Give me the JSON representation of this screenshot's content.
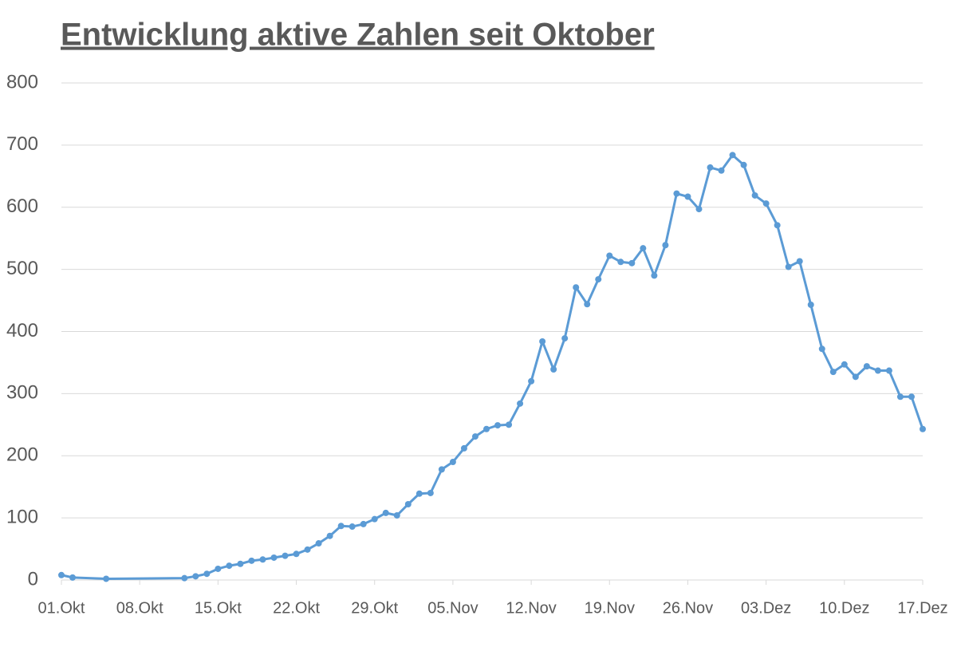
{
  "chart_data": {
    "type": "line",
    "title": "Entwicklung aktive Zahlen seit Oktober",
    "x": [
      0,
      1,
      4,
      11,
      12,
      13,
      14,
      15,
      16,
      17,
      18,
      19,
      20,
      21,
      22,
      23,
      24,
      25,
      26,
      27,
      28,
      29,
      30,
      31,
      32,
      33,
      34,
      35,
      36,
      37,
      38,
      39,
      40,
      41,
      42,
      43,
      44,
      45,
      46,
      47,
      48,
      49,
      50,
      51,
      52,
      53,
      54,
      55,
      56,
      57,
      58,
      59,
      60,
      61,
      62,
      63,
      64,
      65,
      66,
      67,
      68,
      69,
      70,
      71,
      72,
      73,
      74,
      75,
      76,
      77
    ],
    "series": [
      {
        "name": "aktive Zahlen",
        "color": "#5b9bd5",
        "values": [
          8,
          4,
          2,
          3,
          6,
          10,
          18,
          23,
          26,
          31,
          33,
          36,
          39,
          42,
          49,
          59,
          71,
          87,
          86,
          90,
          98,
          108,
          104,
          122,
          139,
          140,
          178,
          190,
          212,
          231,
          243,
          249,
          250,
          284,
          320,
          384,
          339,
          389,
          471,
          444,
          484,
          522,
          512,
          510,
          534,
          490,
          539,
          622,
          617,
          597,
          664,
          659,
          684,
          668,
          619,
          606,
          571,
          504,
          513,
          443,
          372,
          335,
          347,
          327,
          344,
          337,
          337,
          295,
          295,
          243
        ]
      }
    ],
    "xlim": [
      0,
      77
    ],
    "xticks": [
      {
        "value": 0,
        "label": "01.Okt"
      },
      {
        "value": 7,
        "label": "08.Okt"
      },
      {
        "value": 14,
        "label": "15.Okt"
      },
      {
        "value": 21,
        "label": "22.Okt"
      },
      {
        "value": 28,
        "label": "29.Okt"
      },
      {
        "value": 35,
        "label": "05.Nov"
      },
      {
        "value": 42,
        "label": "12.Nov"
      },
      {
        "value": 49,
        "label": "19.Nov"
      },
      {
        "value": 56,
        "label": "26.Nov"
      },
      {
        "value": 63,
        "label": "03.Dez"
      },
      {
        "value": 70,
        "label": "10.Dez"
      },
      {
        "value": 77,
        "label": "17.Dez"
      }
    ],
    "ylim": [
      0,
      800
    ],
    "yticks": [
      0,
      100,
      200,
      300,
      400,
      500,
      600,
      700,
      800
    ],
    "grid": true
  }
}
